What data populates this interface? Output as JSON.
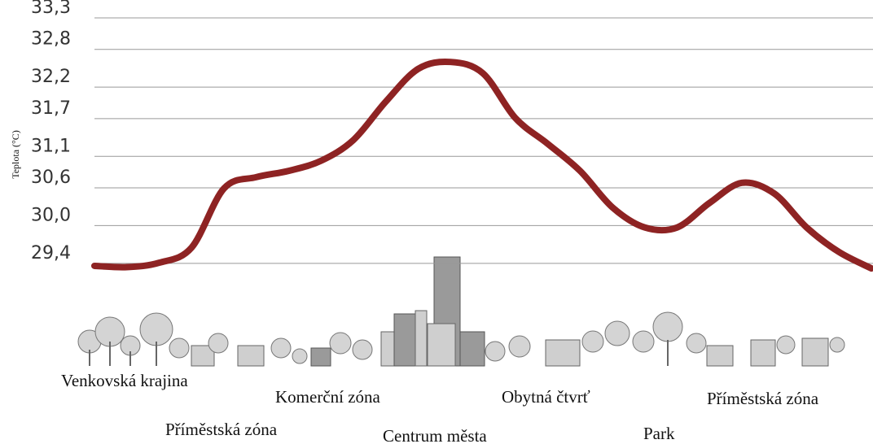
{
  "chart_data": {
    "type": "line",
    "ylabel": "Teplota (°C)",
    "values": [
      29.36,
      29.34,
      29.41,
      29.65,
      30.59,
      30.77,
      30.87,
      31.03,
      31.36,
      31.97,
      32.49,
      32.6,
      32.42,
      31.71,
      31.3,
      30.87,
      30.29,
      29.97,
      29.97,
      30.36,
      30.68,
      30.51,
      29.97,
      29.58,
      29.32
    ],
    "color": "#8e2323",
    "ylim": [
      29.0,
      33.3
    ],
    "yticks": [
      {
        "value": 33.3,
        "label": "33,3"
      },
      {
        "value": 32.8,
        "label": "32,8"
      },
      {
        "value": 32.2,
        "label": "32,2"
      },
      {
        "value": 31.7,
        "label": "31,7"
      },
      {
        "value": 31.1,
        "label": "31,1"
      },
      {
        "value": 30.6,
        "label": "30,6"
      },
      {
        "value": 30.0,
        "label": "30,0"
      },
      {
        "value": 29.4,
        "label": "29,4"
      }
    ],
    "grid": true,
    "annotations": [
      "Venkovská krajina",
      "Příměstská zóna",
      "Komerční zóna",
      "Centrum města",
      "Obytná čtvrť",
      "Park",
      "Příměstská zóna"
    ]
  }
}
